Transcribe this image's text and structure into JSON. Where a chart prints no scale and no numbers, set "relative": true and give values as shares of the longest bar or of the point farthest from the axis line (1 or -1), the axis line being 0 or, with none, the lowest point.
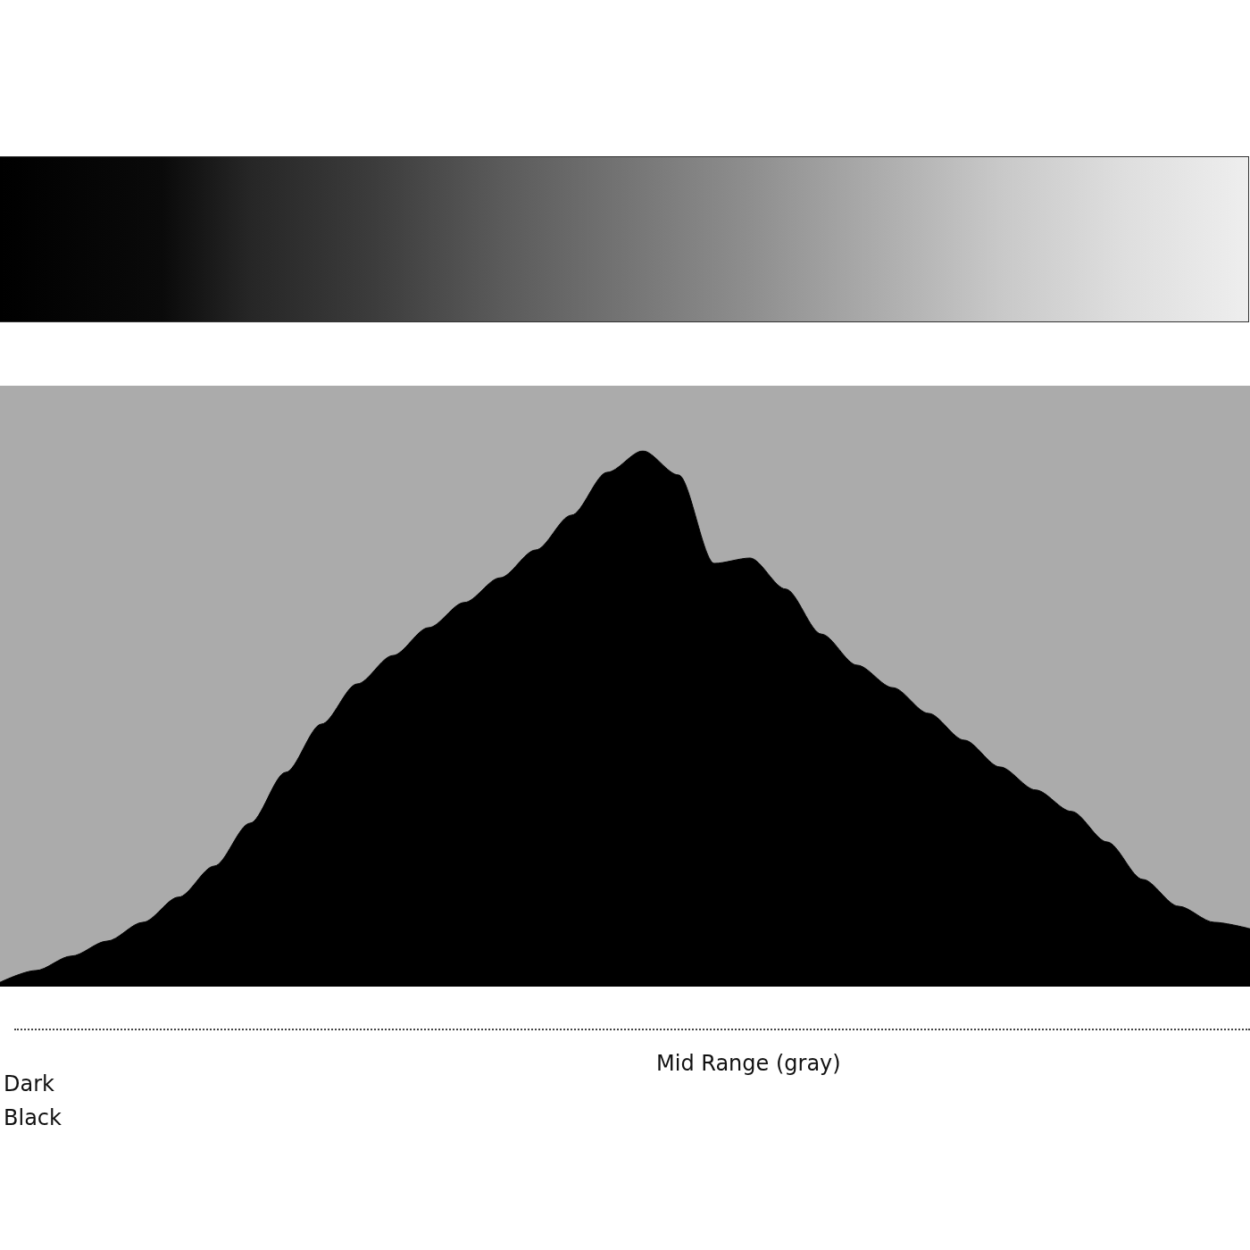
{
  "chart_data": {
    "type": "area",
    "relative": true,
    "color": "#000000",
    "categories": [
      null,
      null,
      null,
      null,
      null,
      null,
      null,
      null,
      null,
      null,
      null,
      null,
      null,
      null,
      null,
      null,
      null,
      null,
      null,
      null,
      null,
      null,
      null,
      null,
      null,
      null,
      null,
      null,
      null,
      null,
      null,
      null,
      null,
      null,
      null,
      null
    ],
    "values": [
      0.008,
      0.03,
      0.057,
      0.085,
      0.12,
      0.167,
      0.225,
      0.305,
      0.4,
      0.49,
      0.565,
      0.618,
      0.67,
      0.717,
      0.763,
      0.815,
      0.88,
      0.96,
      1.0,
      0.955,
      0.79,
      0.8,
      0.742,
      0.658,
      0.6,
      0.558,
      0.51,
      0.46,
      0.41,
      0.367,
      0.327,
      0.27,
      0.2,
      0.15,
      0.12,
      0.108
    ],
    "annotations": [
      "Dark Black",
      "Mid Range (gray)"
    ]
  }
}
